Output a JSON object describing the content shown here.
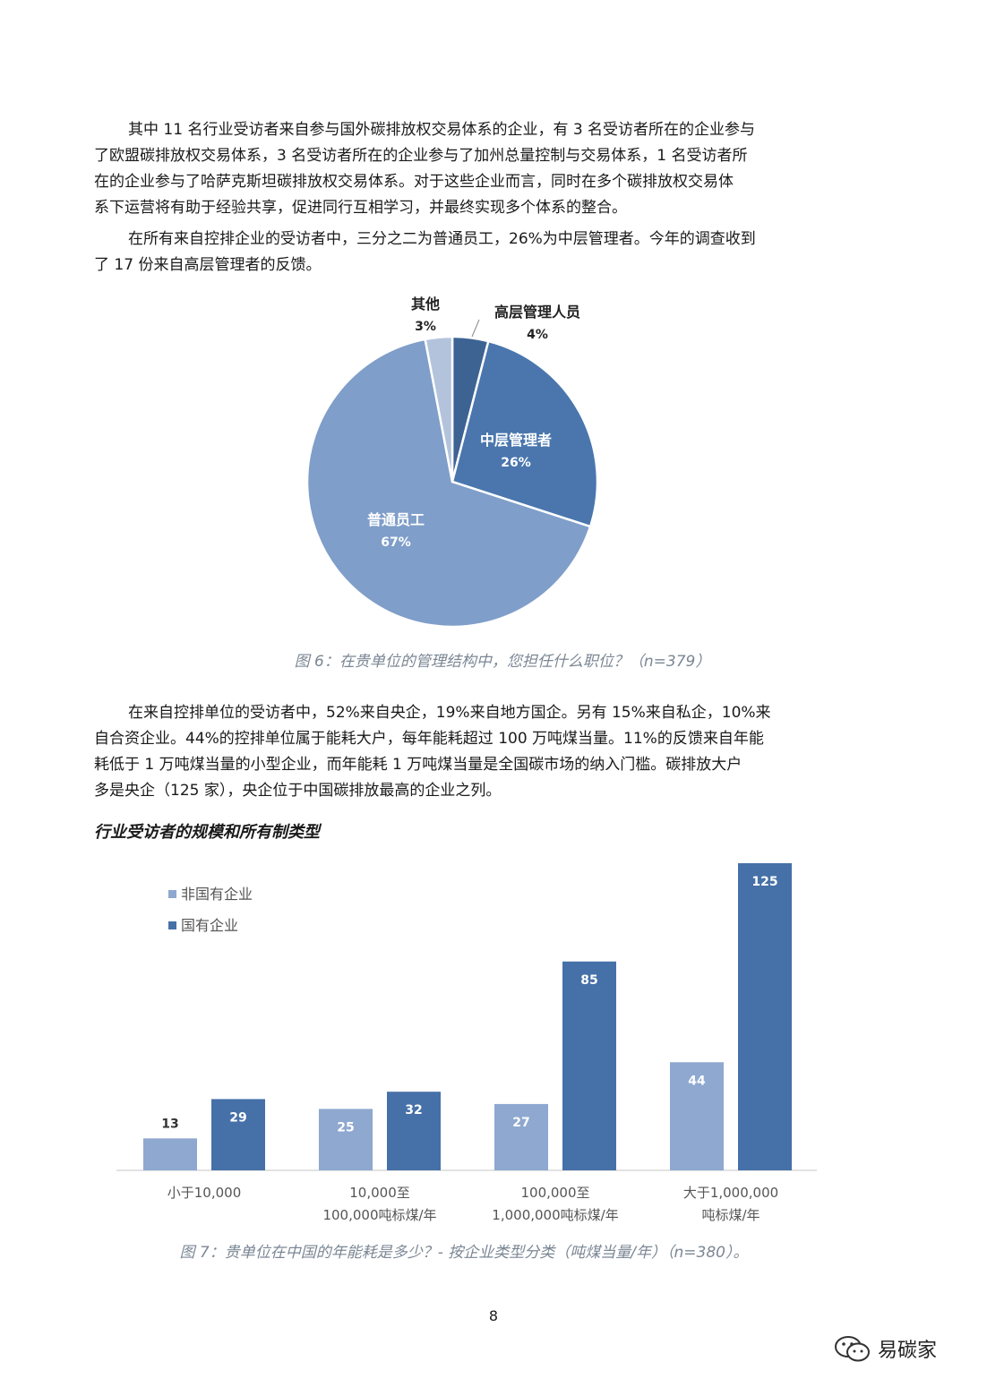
{
  "paragraphs": [
    {
      "lines": [
        "其中 11 名行业受访者来自参与国外碳排放权交易体系的企业，有 3 名受访者所在的企业参与",
        "了欧盟碳排放权交易体系，3 名受访者所在的企业参与了加州总量控制与交易体系，1 名受访者所",
        "在的企业参与了哈萨克斯坦碳排放权交易体系。对于这些企业而言，同时在多个碳排放权交易体",
        "系下运营将有助于经验共享，促进同行互相学习，并最终实现多个体系的整合。"
      ]
    },
    {
      "lines": [
        "在所有来自控排企业的受访者中，三分之二为普通员工，26%为中层管理者。今年的调查收到",
        "了 17 份来自高层管理者的反馈。"
      ]
    },
    {
      "lines": [
        "在来自控排单位的受访者中，52%来自央企，19%来自地方国企。另有 15%来自私企，10%来",
        "自合资企业。44%的控排单位属于能耗大户，每年能耗超过 100 万吨煤当量。11%的反馈来自年能",
        "耗低于 1 万吨煤当量的小型企业，而年能耗 1 万吨煤当量是全国碳市场的纳入门槛。碳排放大户",
        "多是央企（125 家），央企位于中国碳排放最高的企业之列。"
      ]
    }
  ],
  "section_heading": "行业受访者的规模和所有制类型",
  "caption_fig6": "图 6：在贵单位的管理结构中，您担任什么职位？（n=379）",
  "caption_fig7": "图 7：贵单位在中国的年能耗是多少？- 按企业类型分类（吨煤当量/年）（n=380）。",
  "page_number": "8",
  "watermark": {
    "text": "易碳家",
    "icon": "wechat-icon"
  },
  "chart_data": [
    {
      "type": "pie",
      "slices": [
        {
          "label": "高层管理人员",
          "value": 4,
          "value_label": "4%",
          "color": "#3d6393"
        },
        {
          "label": "中层管理者",
          "value": 26,
          "value_label": "26%",
          "color": "#4a76ad"
        },
        {
          "label": "普通员工",
          "value": 67,
          "value_label": "67%",
          "color": "#7f9ec9"
        },
        {
          "label": "其他",
          "value": 3,
          "value_label": "3%",
          "color": "#b3c3db"
        }
      ]
    },
    {
      "type": "bar",
      "categories": [
        [
          "小于10,000"
        ],
        [
          "10,000至",
          "100,000吨标煤/年"
        ],
        [
          "100,000至",
          "1,000,000吨标煤/年"
        ],
        [
          "大于1,000,000",
          "吨标煤/年"
        ]
      ],
      "series": [
        {
          "name": "非国有企业",
          "values": [
            13,
            25,
            27,
            44
          ],
          "color": "#8ea8d0"
        },
        {
          "name": "国有企业",
          "values": [
            29,
            32,
            85,
            125
          ],
          "color": "#4670a8"
        }
      ],
      "ylim": [
        0,
        125
      ],
      "legend": "top-left",
      "grid": false
    }
  ]
}
